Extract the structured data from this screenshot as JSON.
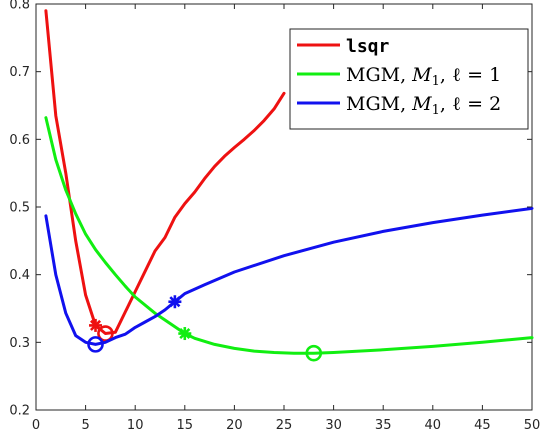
{
  "chart_data": {
    "type": "line",
    "xlim": [
      0,
      50
    ],
    "ylim": [
      0.2,
      0.8
    ],
    "x_ticks": [
      "0",
      "5",
      "10",
      "15",
      "20",
      "25",
      "30",
      "35",
      "40",
      "45",
      "50"
    ],
    "y_ticks": [
      "0.2",
      "0.3",
      "0.4",
      "0.5",
      "0.6",
      "0.7",
      "0.8"
    ],
    "grid": false,
    "legend_position": "top-right",
    "series": [
      {
        "name": "lsqr",
        "color": "#ee1111",
        "x": [
          1,
          2,
          3,
          4,
          5,
          6,
          7,
          8,
          9,
          10,
          11,
          12,
          13,
          14,
          15,
          16,
          17,
          18,
          19,
          20,
          21,
          22,
          23,
          24,
          25
        ],
        "y": [
          0.79,
          0.635,
          0.55,
          0.45,
          0.37,
          0.325,
          0.313,
          0.315,
          0.345,
          0.375,
          0.405,
          0.435,
          0.455,
          0.485,
          0.505,
          0.522,
          0.542,
          0.56,
          0.575,
          0.588,
          0.6,
          0.613,
          0.628,
          0.645,
          0.668
        ],
        "star_marker": {
          "x": 6,
          "y": 0.325
        },
        "circle_marker": {
          "x": 7,
          "y": 0.313
        }
      },
      {
        "name_parts": [
          "MGM, ",
          "M",
          "1",
          ", ℓ = 1"
        ],
        "color": "#11ee11",
        "x": [
          1,
          2,
          3,
          4,
          5,
          6,
          7,
          8,
          9,
          10,
          12,
          14,
          15,
          16,
          18,
          20,
          22,
          24,
          26,
          28,
          30,
          35,
          40,
          45,
          50
        ],
        "y": [
          0.632,
          0.57,
          0.525,
          0.49,
          0.46,
          0.437,
          0.418,
          0.4,
          0.383,
          0.367,
          0.343,
          0.323,
          0.313,
          0.306,
          0.297,
          0.291,
          0.287,
          0.285,
          0.284,
          0.284,
          0.285,
          0.289,
          0.294,
          0.3,
          0.307
        ],
        "star_marker": {
          "x": 15,
          "y": 0.313
        },
        "circle_marker": {
          "x": 28,
          "y": 0.284
        }
      },
      {
        "name_parts": [
          "MGM, ",
          "M",
          "1",
          ", ℓ = 2"
        ],
        "color": "#1111ee",
        "x": [
          1,
          2,
          3,
          4,
          5,
          6,
          7,
          8,
          9,
          10,
          11,
          12,
          13,
          14,
          15,
          17,
          20,
          25,
          30,
          35,
          40,
          45,
          50
        ],
        "y": [
          0.487,
          0.4,
          0.343,
          0.31,
          0.3,
          0.297,
          0.3,
          0.307,
          0.312,
          0.322,
          0.33,
          0.338,
          0.348,
          0.36,
          0.372,
          0.385,
          0.404,
          0.428,
          0.448,
          0.464,
          0.477,
          0.488,
          0.498
        ],
        "star_marker": {
          "x": 14,
          "y": 0.36
        },
        "circle_marker": {
          "x": 6,
          "y": 0.297
        }
      }
    ]
  }
}
